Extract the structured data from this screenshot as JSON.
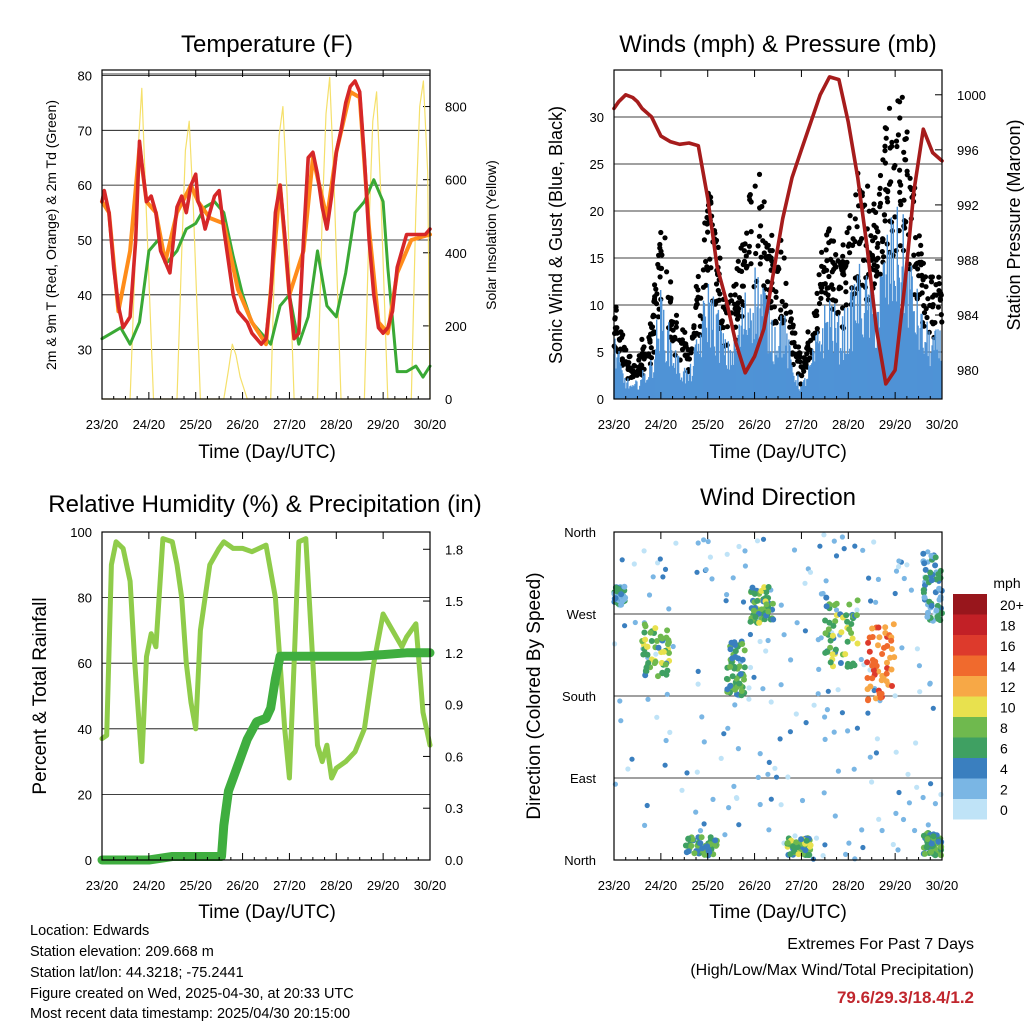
{
  "chart_data": [
    {
      "id": "temperature",
      "type": "line",
      "title": "Temperature (F)",
      "xlabel": "Time (Day/UTC)",
      "ylabel": "2m & 9m T (Red, Orange) & 2m Td (Green)",
      "ylabel_right": "Solar Insolation (Yellow)",
      "x_ticks": [
        "23/20",
        "24/20",
        "25/20",
        "26/20",
        "27/20",
        "28/20",
        "29/20",
        "30/20"
      ],
      "xlim": [
        0,
        7
      ],
      "ylim": [
        21,
        81
      ],
      "y_ticks": [
        30,
        40,
        50,
        60,
        70,
        80
      ],
      "ylim_right": [
        0,
        900
      ],
      "y_ticks_right": [
        0,
        200,
        400,
        600,
        800
      ],
      "grid": true,
      "series": [
        {
          "name": "2m T",
          "color": "#d62728",
          "axis": "left",
          "x": [
            0,
            0.05,
            0.15,
            0.25,
            0.35,
            0.45,
            0.6,
            0.72,
            0.8,
            0.85,
            0.95,
            1.05,
            1.15,
            1.25,
            1.35,
            1.45,
            1.55,
            1.6,
            1.7,
            1.8,
            1.9,
            2.0,
            2.05,
            2.1,
            2.2,
            2.3,
            2.4,
            2.5,
            2.6,
            2.7,
            2.8,
            2.9,
            3.0,
            3.1,
            3.2,
            3.3,
            3.4,
            3.5,
            3.6,
            3.7,
            3.8,
            3.9,
            4.0,
            4.1,
            4.2,
            4.3,
            4.4,
            4.5,
            4.6,
            4.7,
            4.8,
            4.9,
            5.0,
            5.1,
            5.2,
            5.3,
            5.4,
            5.5,
            5.6,
            5.7,
            5.8,
            5.9,
            6.0,
            6.1,
            6.2,
            6.3,
            6.4,
            6.5,
            6.6,
            6.7,
            6.8,
            6.9,
            7.0
          ],
          "y": [
            57,
            59,
            55,
            45,
            38,
            34,
            36,
            50,
            68,
            64,
            57,
            58,
            55,
            48,
            46,
            44,
            52,
            56,
            58,
            55,
            60,
            62,
            57,
            56,
            52,
            55,
            58,
            59,
            52,
            46,
            40,
            37,
            36,
            35,
            33,
            32,
            31,
            32,
            40,
            55,
            60,
            51,
            40,
            32,
            33,
            50,
            65,
            66,
            62,
            56,
            52,
            58,
            66,
            70,
            75,
            78,
            79,
            77,
            65,
            50,
            40,
            34,
            33,
            34,
            37,
            45,
            48,
            51,
            51,
            51,
            51,
            51,
            52
          ]
        },
        {
          "name": "9m T",
          "color": "#ff8c1a",
          "axis": "left",
          "x": [
            0,
            0.15,
            0.35,
            0.6,
            0.8,
            0.95,
            1.15,
            1.35,
            1.6,
            1.9,
            2.05,
            2.3,
            2.6,
            2.9,
            3.2,
            3.5,
            3.8,
            4.0,
            4.3,
            4.5,
            4.8,
            5.0,
            5.3,
            5.5,
            5.7,
            5.9,
            6.1,
            6.3,
            6.6,
            7.0
          ],
          "y": [
            57,
            55,
            37,
            48,
            67,
            57,
            55,
            46,
            55,
            60,
            57,
            54,
            53,
            41,
            35,
            31,
            60,
            40,
            48,
            65,
            54,
            66,
            77,
            76,
            52,
            35,
            33,
            44,
            50,
            51
          ]
        },
        {
          "name": "2m Td",
          "color": "#3aa935",
          "axis": "left",
          "x": [
            0,
            0.2,
            0.4,
            0.6,
            0.8,
            1.0,
            1.2,
            1.4,
            1.6,
            1.8,
            2.0,
            2.2,
            2.4,
            2.6,
            2.8,
            3.0,
            3.2,
            3.4,
            3.6,
            3.8,
            4.0,
            4.2,
            4.4,
            4.6,
            4.8,
            5.0,
            5.2,
            5.4,
            5.6,
            5.8,
            6.0,
            6.1,
            6.3,
            6.5,
            6.7,
            6.85,
            7.0
          ],
          "y": [
            32,
            33,
            34,
            31,
            35,
            48,
            50,
            46,
            48,
            52,
            53,
            56,
            57,
            55,
            47,
            40,
            35,
            33,
            31,
            38,
            40,
            31,
            36,
            48,
            38,
            36,
            44,
            55,
            57,
            61,
            57,
            45,
            26,
            26,
            27,
            25,
            27
          ]
        },
        {
          "name": "Solar Insolation",
          "color": "#f5e06b",
          "axis": "right",
          "x": [
            0,
            0.6,
            0.7,
            0.78,
            0.85,
            0.95,
            1.1,
            1.6,
            1.7,
            1.78,
            1.86,
            1.95,
            2.1,
            2.6,
            2.7,
            2.78,
            2.86,
            2.95,
            3.1,
            3.6,
            3.7,
            3.78,
            3.86,
            3.95,
            4.1,
            4.6,
            4.7,
            4.78,
            4.86,
            4.95,
            5.1,
            5.6,
            5.7,
            5.78,
            5.86,
            5.95,
            6.1,
            6.6,
            6.7,
            6.78,
            6.86,
            6.95,
            7.0
          ],
          "y": [
            0,
            0,
            350,
            700,
            850,
            500,
            0,
            0,
            400,
            680,
            760,
            520,
            0,
            0,
            80,
            150,
            120,
            60,
            0,
            0,
            450,
            720,
            800,
            560,
            0,
            0,
            500,
            780,
            880,
            600,
            0,
            0,
            480,
            760,
            840,
            560,
            0,
            0,
            520,
            800,
            870,
            620,
            0
          ]
        }
      ]
    },
    {
      "id": "winds",
      "type": "scatter",
      "title": "Winds (mph) & Pressure (mb)",
      "xlabel": "Time (Day/UTC)",
      "ylabel": "Sonic Wind & Gust (Blue, Black)",
      "ylabel_right": "Station Pressure (Maroon)",
      "x_ticks": [
        "23/20",
        "24/20",
        "25/20",
        "26/20",
        "27/20",
        "28/20",
        "29/20",
        "30/20"
      ],
      "xlim": [
        0,
        7
      ],
      "ylim": [
        0,
        35
      ],
      "y_ticks": [
        0,
        5,
        10,
        15,
        20,
        25,
        30
      ],
      "ylim_right": [
        977.9,
        1001.8
      ],
      "y_ticks_right": [
        980,
        984,
        988,
        992,
        996,
        1000
      ],
      "grid": true,
      "wind_profile": {
        "x": [
          0,
          0.2,
          0.4,
          0.6,
          0.8,
          1.0,
          1.2,
          1.4,
          1.6,
          1.8,
          2.0,
          2.2,
          2.4,
          2.6,
          2.8,
          3.0,
          3.2,
          3.4,
          3.6,
          3.8,
          4.0,
          4.2,
          4.4,
          4.6,
          4.8,
          5.0,
          5.2,
          5.4,
          5.6,
          5.8,
          6.0,
          6.2,
          6.4,
          6.6,
          6.8,
          7.0
        ],
        "y": [
          5,
          2,
          1,
          2,
          3,
          8,
          5,
          3,
          2,
          5,
          9,
          7,
          4,
          5,
          8,
          10,
          9,
          6,
          7,
          3,
          1,
          3,
          6,
          8,
          6,
          7,
          10,
          9,
          8,
          12,
          14,
          13,
          9,
          6,
          5,
          5
        ]
      },
      "series": [
        {
          "name": "Station Pressure",
          "color": "#a61c1c",
          "axis": "right",
          "x": [
            0,
            0.1,
            0.25,
            0.4,
            0.5,
            0.6,
            0.8,
            1.0,
            1.2,
            1.4,
            1.6,
            1.8,
            2.0,
            2.2,
            2.4,
            2.6,
            2.8,
            3.0,
            3.2,
            3.4,
            3.6,
            3.8,
            4.0,
            4.2,
            4.4,
            4.6,
            4.8,
            5.0,
            5.2,
            5.4,
            5.6,
            5.8,
            6.0,
            6.2,
            6.4,
            6.6,
            6.8,
            7.0
          ],
          "y": [
            999,
            999.5,
            1000,
            999.8,
            999.5,
            999.0,
            998.4,
            997.0,
            996.6,
            996.4,
            996.5,
            996.3,
            992.5,
            987.5,
            985.0,
            982.0,
            979.8,
            981.0,
            983.0,
            987.0,
            991.0,
            994.0,
            996.0,
            998.0,
            1000.0,
            1001.3,
            1001.1,
            998.0,
            994.0,
            989.0,
            983.0,
            979.0,
            980.0,
            986.0,
            993.0,
            997.5,
            995.8,
            995.2
          ]
        }
      ]
    },
    {
      "id": "rh_precip",
      "type": "line",
      "title": "Relative Humidity (%) & Precipitation (in)",
      "xlabel": "Time (Day/UTC)",
      "ylabel": "Percent & Total Rainfall",
      "x_ticks": [
        "23/20",
        "24/20",
        "25/20",
        "26/20",
        "27/20",
        "28/20",
        "29/20",
        "30/20"
      ],
      "xlim": [
        0,
        7
      ],
      "ylim": [
        0,
        100
      ],
      "y_ticks": [
        0,
        20,
        40,
        60,
        80,
        100
      ],
      "ylim_right": [
        0,
        1.9
      ],
      "y_ticks_right": [
        "0.0",
        "0.3",
        "0.6",
        "0.9",
        "1.2",
        "1.5",
        "1.8"
      ],
      "grid": true,
      "series": [
        {
          "name": "Relative Humidity",
          "color": "#8fcc4a",
          "axis": "left",
          "x": [
            0,
            0.1,
            0.2,
            0.3,
            0.45,
            0.6,
            0.7,
            0.8,
            0.85,
            0.95,
            1.05,
            1.15,
            1.3,
            1.5,
            1.6,
            1.7,
            1.8,
            1.9,
            2.0,
            2.1,
            2.3,
            2.5,
            2.6,
            2.7,
            2.8,
            3.0,
            3.2,
            3.5,
            3.7,
            3.8,
            3.9,
            4.0,
            4.1,
            4.2,
            4.35,
            4.5,
            4.6,
            4.7,
            4.8,
            4.9,
            5.0,
            5.2,
            5.4,
            5.6,
            5.8,
            6.0,
            6.2,
            6.4,
            6.5,
            6.7,
            6.85,
            7.0
          ],
          "y": [
            37,
            38,
            90,
            97,
            95,
            85,
            60,
            40,
            30,
            62,
            69,
            65,
            98,
            97,
            90,
            80,
            60,
            48,
            40,
            70,
            90,
            95,
            97,
            96,
            95,
            95,
            94,
            96,
            80,
            60,
            40,
            25,
            60,
            97,
            98,
            60,
            35,
            30,
            35,
            25,
            28,
            30,
            33,
            40,
            60,
            75,
            70,
            65,
            68,
            72,
            45,
            35
          ]
        },
        {
          "name": "Total Rainfall",
          "color": "#3fae3f",
          "axis": "right",
          "x": [
            0,
            1.0,
            1.5,
            2.0,
            2.55,
            2.6,
            2.7,
            2.9,
            3.1,
            3.3,
            3.5,
            3.6,
            3.7,
            3.8,
            4.0,
            4.5,
            5.0,
            5.5,
            6.0,
            6.5,
            7.0
          ],
          "y": [
            0,
            0,
            0.02,
            0.02,
            0.02,
            0.2,
            0.4,
            0.55,
            0.7,
            0.8,
            0.82,
            0.88,
            1.05,
            1.18,
            1.18,
            1.18,
            1.18,
            1.18,
            1.19,
            1.2,
            1.2
          ]
        }
      ]
    },
    {
      "id": "wind_direction",
      "type": "scatter",
      "title": "Wind Direction",
      "xlabel": "Time (Day/UTC)",
      "ylabel": "Direction (Colored By Speed)",
      "x_ticks": [
        "23/20",
        "24/20",
        "25/20",
        "26/20",
        "27/20",
        "28/20",
        "29/20",
        "30/20"
      ],
      "xlim": [
        0,
        7
      ],
      "ylim": [
        0,
        360
      ],
      "y_ticks": [
        "North",
        "East",
        "South",
        "West",
        "North"
      ],
      "grid": true,
      "colorbar": {
        "unit": "mph",
        "labels": [
          "20+",
          "18",
          "16",
          "14",
          "12",
          "10",
          "8",
          "6",
          "4",
          "2",
          "0"
        ],
        "colors": [
          "#98161c",
          "#c22026",
          "#dd3a2c",
          "#f06a2d",
          "#f7a846",
          "#e8e14e",
          "#6fb94e",
          "#3fa062",
          "#3a7fbf",
          "#7ab6e4",
          "#bfe3f7"
        ]
      },
      "clusters": [
        {
          "x0": 0.0,
          "x1": 0.25,
          "d0": 280,
          "d1": 300,
          "speed": 4
        },
        {
          "x0": 0.6,
          "x1": 1.2,
          "d0": 200,
          "d1": 260,
          "speed": 7
        },
        {
          "x0": 1.5,
          "x1": 2.2,
          "d0": 5,
          "d1": 25,
          "speed": 6
        },
        {
          "x0": 2.4,
          "x1": 2.8,
          "d0": 180,
          "d1": 240,
          "speed": 6
        },
        {
          "x0": 2.9,
          "x1": 3.4,
          "d0": 260,
          "d1": 300,
          "speed": 7
        },
        {
          "x0": 3.7,
          "x1": 4.2,
          "d0": 5,
          "d1": 25,
          "speed": 7
        },
        {
          "x0": 4.5,
          "x1": 5.2,
          "d0": 210,
          "d1": 290,
          "speed": 7
        },
        {
          "x0": 5.4,
          "x1": 6.0,
          "d0": 175,
          "d1": 260,
          "speed": 14
        },
        {
          "x0": 6.6,
          "x1": 7.0,
          "d0": 5,
          "d1": 30,
          "speed": 6
        },
        {
          "x0": 6.6,
          "x1": 7.0,
          "d0": 260,
          "d1": 340,
          "speed": 4
        }
      ]
    }
  ],
  "footer": {
    "location": "Location: Edwards",
    "elevation": "Station elevation: 209.668 m",
    "latlon": "Station lat/lon: 44.3218; -75.2441",
    "created": "Figure created on Wed, 2025-04-30, at 20:33 UTC",
    "timestamp": "Most recent data timestamp: 2025/04/30 20:15:00"
  },
  "extremes": {
    "title": "Extremes For Past 7 Days",
    "subtitle": "(High/Low/Max Wind/Total Precipitation)",
    "values": "79.6/29.3/18.4/1.2"
  }
}
